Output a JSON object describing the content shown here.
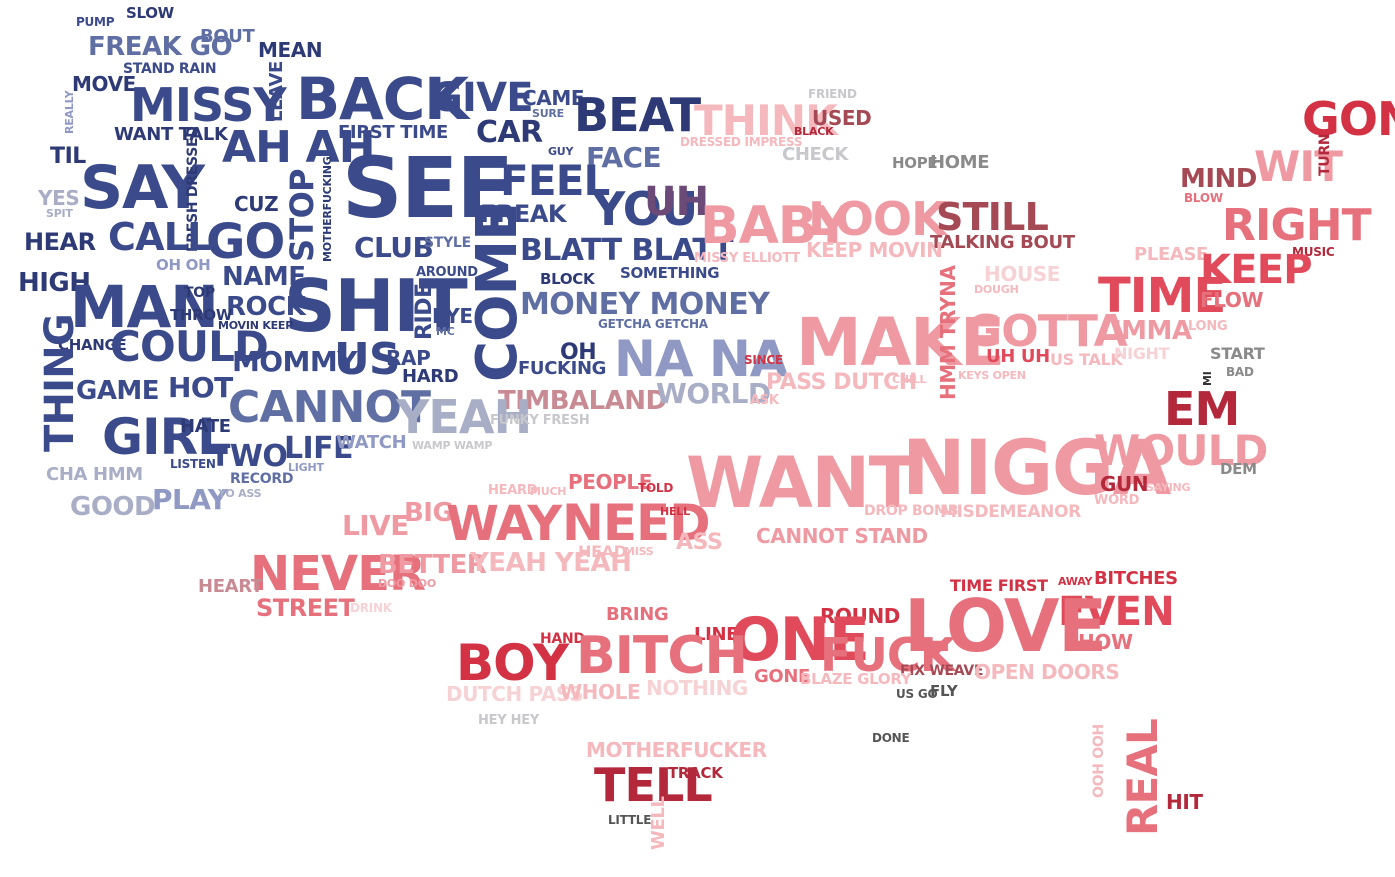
{
  "colors": {
    "navy": "#3b4a8a",
    "navy_dark": "#2d3a76",
    "slate": "#5f6ea3",
    "lilac": "#8f99c4",
    "gray_blue": "#a9aec7",
    "light_gray": "#c8c8cc",
    "gray": "#8a8a8a",
    "dark_gray": "#555555",
    "pink": "#ef9aa2",
    "pink_light": "#f4b8bd",
    "pink_pale": "#f7d2d5",
    "rose": "#e6707c",
    "red": "#e04a5a",
    "crimson": "#d23244",
    "maroon": "#b3293b",
    "brown_red": "#a54a54",
    "mauve": "#c98b93"
  },
  "words": [
    {
      "t": "PUMP"
    },
    {
      "t": "SLOW"
    },
    {
      "t": "FREAK GO"
    },
    {
      "t": "BOUT"
    },
    {
      "t": "MEAN"
    },
    {
      "t": "STAND RAIN"
    },
    {
      "t": "MOVE"
    },
    {
      "t": "MISSY"
    },
    {
      "t": "LEAVE"
    },
    {
      "t": "BACK"
    },
    {
      "t": "GIVE"
    },
    {
      "t": "CAME"
    },
    {
      "t": "SURE"
    },
    {
      "t": "BEAT"
    },
    {
      "t": "REALLY"
    },
    {
      "t": "WANT TALK"
    },
    {
      "t": "AH AH"
    },
    {
      "t": "FIRST TIME"
    },
    {
      "t": "CAR"
    },
    {
      "t": "TIL"
    },
    {
      "t": "SAY"
    },
    {
      "t": "FRESH DRESSED"
    },
    {
      "t": "STOP"
    },
    {
      "t": "SEE"
    },
    {
      "t": "GUY"
    },
    {
      "t": "FACE"
    },
    {
      "t": "FEEL"
    },
    {
      "t": "YES"
    },
    {
      "t": "SPIT"
    },
    {
      "t": "CUZ"
    },
    {
      "t": "MOTHERFUCKING"
    },
    {
      "t": "FREAK"
    },
    {
      "t": "YOU"
    },
    {
      "t": "UH"
    },
    {
      "t": "HEAR"
    },
    {
      "t": "CALL"
    },
    {
      "t": "GO"
    },
    {
      "t": "CLUB"
    },
    {
      "t": "STYLE"
    },
    {
      "t": "BLATT BLATT"
    },
    {
      "t": "OH OH"
    },
    {
      "t": "NAME"
    },
    {
      "t": "COME"
    },
    {
      "t": "AROUND"
    },
    {
      "t": "BLOCK"
    },
    {
      "t": "SOMETHING"
    },
    {
      "t": "HIGH"
    },
    {
      "t": "MAN"
    },
    {
      "t": "TOP"
    },
    {
      "t": "SHIT"
    },
    {
      "t": "ROCK"
    },
    {
      "t": "EYE"
    },
    {
      "t": "RIDE"
    },
    {
      "t": "THROW"
    },
    {
      "t": "MOVIN KEEP"
    },
    {
      "t": "MONEY MONEY"
    },
    {
      "t": "GETCHA GETCHA"
    },
    {
      "t": "MC"
    },
    {
      "t": "CHANGE"
    },
    {
      "t": "COULD"
    },
    {
      "t": "MOMMY"
    },
    {
      "t": "US"
    },
    {
      "t": "RAP"
    },
    {
      "t": "HARD"
    },
    {
      "t": "OH"
    },
    {
      "t": "FUCKING"
    },
    {
      "t": "NA NA"
    },
    {
      "t": "THING"
    },
    {
      "t": "GAME"
    },
    {
      "t": "HOT"
    },
    {
      "t": "CANNOT"
    },
    {
      "t": "TIMBALAND"
    },
    {
      "t": "WORLD"
    },
    {
      "t": "GIRL"
    },
    {
      "t": "HATE"
    },
    {
      "t": "YEAH"
    },
    {
      "t": "FUNKY FRESH"
    },
    {
      "t": "TWO"
    },
    {
      "t": "LIFE"
    },
    {
      "t": "WATCH"
    },
    {
      "t": "WAMP WAMP"
    },
    {
      "t": "LISTEN"
    },
    {
      "t": "LIGHT"
    },
    {
      "t": "RECORD"
    },
    {
      "t": "CHA HMM"
    },
    {
      "t": "PLAY"
    },
    {
      "t": "YO ASS"
    },
    {
      "t": "GOOD"
    },
    {
      "t": "THINK"
    },
    {
      "t": "FRIEND"
    },
    {
      "t": "USED"
    },
    {
      "t": "BLACK"
    },
    {
      "t": "DRESSED IMPRESS"
    },
    {
      "t": "CHECK"
    },
    {
      "t": "HOPE"
    },
    {
      "t": "HOME"
    },
    {
      "t": "GON"
    },
    {
      "t": "WIT"
    },
    {
      "t": "TURN"
    },
    {
      "t": "MIND"
    },
    {
      "t": "BLOW"
    },
    {
      "t": "BABY"
    },
    {
      "t": "LOOK"
    },
    {
      "t": "STILL"
    },
    {
      "t": "TALKING BOUT"
    },
    {
      "t": "KEEP MOVIN"
    },
    {
      "t": "MISSY ELLIOTT"
    },
    {
      "t": "RIGHT"
    },
    {
      "t": "PLEASE"
    },
    {
      "t": "MUSIC"
    },
    {
      "t": "HOUSE"
    },
    {
      "t": "DOUGH"
    },
    {
      "t": "KEEP"
    },
    {
      "t": "TIME"
    },
    {
      "t": "FLOW"
    },
    {
      "t": "MAKE"
    },
    {
      "t": "HMM TRYNA"
    },
    {
      "t": "GOTTA"
    },
    {
      "t": "IMMA"
    },
    {
      "t": "LONG"
    },
    {
      "t": "UH UH"
    },
    {
      "t": "US TALK"
    },
    {
      "t": "NIGHT"
    },
    {
      "t": "START"
    },
    {
      "t": "SINCE"
    },
    {
      "t": "PASS DUTCH"
    },
    {
      "t": "CHILL"
    },
    {
      "t": "KEYS OPEN"
    },
    {
      "t": "BAD"
    },
    {
      "t": "MI"
    },
    {
      "t": "ASK"
    },
    {
      "t": "EM"
    },
    {
      "t": "NIGGA"
    },
    {
      "t": "WANT"
    },
    {
      "t": "WOULD"
    },
    {
      "t": "DEM"
    },
    {
      "t": "HEARD"
    },
    {
      "t": "MUCH"
    },
    {
      "t": "PEOPLE"
    },
    {
      "t": "TOLD"
    },
    {
      "t": "GUN"
    },
    {
      "t": "SAYING"
    },
    {
      "t": "WORD"
    },
    {
      "t": "BIG"
    },
    {
      "t": "LIVE"
    },
    {
      "t": "WAY"
    },
    {
      "t": "NEED"
    },
    {
      "t": "HELL"
    },
    {
      "t": "DROP BOMB"
    },
    {
      "t": "MISDEMEANOR"
    },
    {
      "t": "ASS"
    },
    {
      "t": "CANNOT STAND"
    },
    {
      "t": "NEVER"
    },
    {
      "t": "BETTER"
    },
    {
      "t": "YEAH YEAH"
    },
    {
      "t": "HEAD"
    },
    {
      "t": "MISS"
    },
    {
      "t": "DOO DOO"
    },
    {
      "t": "HEART"
    },
    {
      "t": "STREET"
    },
    {
      "t": "DRINK"
    },
    {
      "t": "TIME FIRST"
    },
    {
      "t": "AWAY"
    },
    {
      "t": "BITCHES"
    },
    {
      "t": "EVEN"
    },
    {
      "t": "SHOW"
    },
    {
      "t": "LOVE"
    },
    {
      "t": "BRING"
    },
    {
      "t": "ROUND"
    },
    {
      "t": "HAND"
    },
    {
      "t": "LINE"
    },
    {
      "t": "ONE"
    },
    {
      "t": "FUCK"
    },
    {
      "t": "BOY"
    },
    {
      "t": "BITCH"
    },
    {
      "t": "FIX WEAVE"
    },
    {
      "t": "OPEN DOORS"
    },
    {
      "t": "GONE"
    },
    {
      "t": "BLAZE GLORY"
    },
    {
      "t": "US GO"
    },
    {
      "t": "FLY"
    },
    {
      "t": "DUTCH PASS"
    },
    {
      "t": "WHOLE"
    },
    {
      "t": "NOTHING"
    },
    {
      "t": "HEY HEY"
    },
    {
      "t": "DONE"
    },
    {
      "t": "MOTHERFUCKER"
    },
    {
      "t": "OOH OOH"
    },
    {
      "t": "TELL"
    },
    {
      "t": "TRACK"
    },
    {
      "t": "REAL"
    },
    {
      "t": "HIT"
    },
    {
      "t": "LITTLE"
    },
    {
      "t": "WELL"
    }
  ]
}
